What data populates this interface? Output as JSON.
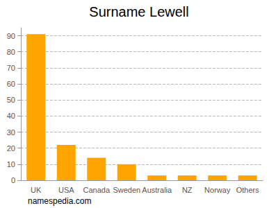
{
  "chart_data": {
    "type": "bar",
    "title": "Surname Lewell",
    "categories": [
      "UK",
      "USA",
      "Canada",
      "Sweden",
      "Australia",
      "NZ",
      "Norway",
      "Others"
    ],
    "values": [
      91,
      22,
      14,
      10,
      3,
      3,
      3,
      3
    ],
    "color": "#ffa500",
    "ylim": [
      0,
      95
    ],
    "yticks": [
      0,
      10,
      20,
      30,
      40,
      50,
      60,
      70,
      80,
      90
    ],
    "grid": true,
    "annotation": "namespedia.com"
  }
}
